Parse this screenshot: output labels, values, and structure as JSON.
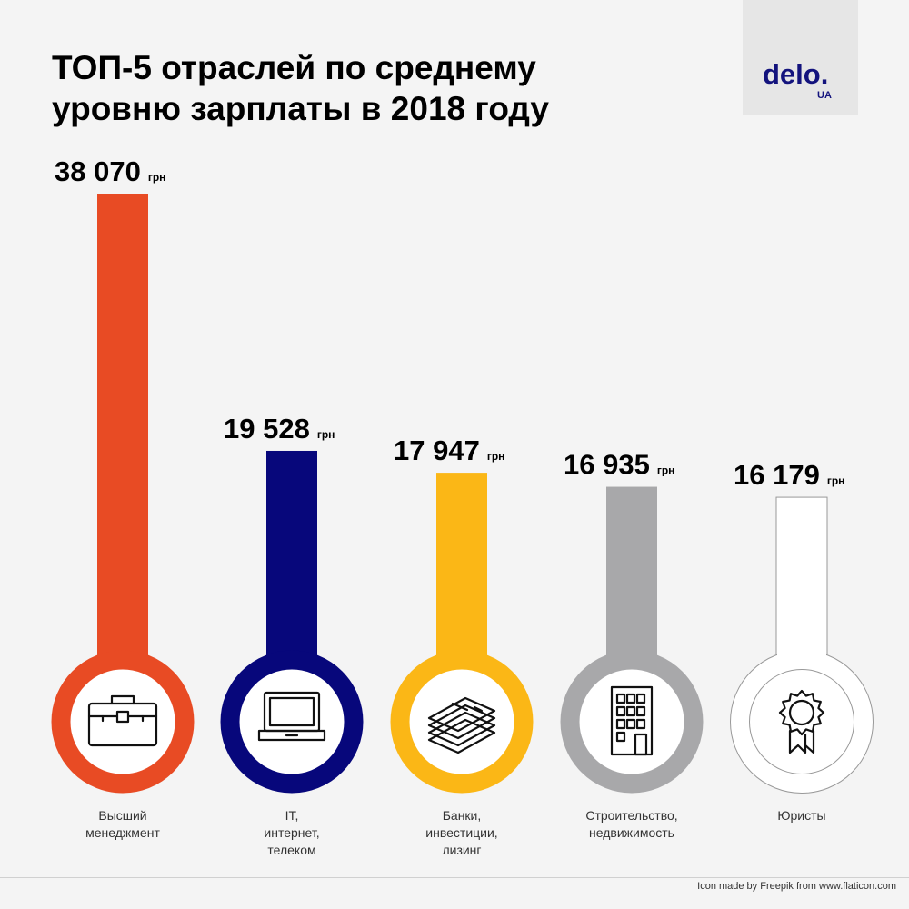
{
  "title_lines": [
    "ТОП-5 отраслей по среднему",
    "уровню зарплаты в 2018 году"
  ],
  "logo": {
    "main": "delo.",
    "sub": "UA"
  },
  "credit": "Icon made by Freepik from www.flaticon.com",
  "chart_data": {
    "type": "bar",
    "title": "ТОП-5 отраслей по среднему уровню зарплаты в 2018 году",
    "unit": "грн",
    "categories": [
      [
        "Высший",
        "менеджмент"
      ],
      [
        "IT,",
        "интернет,",
        "телеком"
      ],
      [
        "Банки,",
        "инвестиции,",
        "лизинг"
      ],
      [
        "Строительство,",
        "недвижимость"
      ],
      [
        "Юристы"
      ]
    ],
    "values": [
      38070,
      19528,
      17947,
      16935,
      16179
    ],
    "value_labels": [
      "38 070",
      "19 528",
      "17 947",
      "16 935",
      "16 179"
    ],
    "colors": [
      "#e84b24",
      "#07077b",
      "#fbb716",
      "#a8a8aa",
      "#ffffff"
    ],
    "icons": [
      "briefcase-icon",
      "laptop-icon",
      "money-stack-icon",
      "building-icon",
      "award-ribbon-icon"
    ]
  }
}
